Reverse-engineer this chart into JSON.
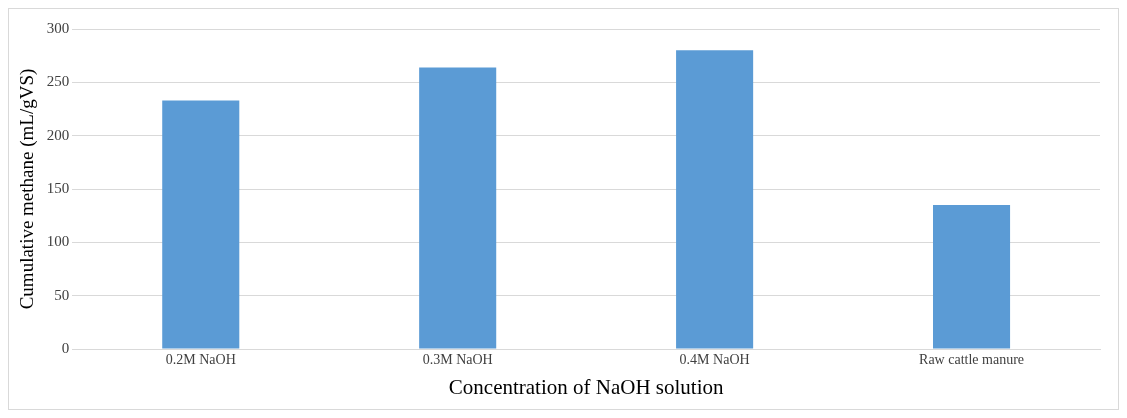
{
  "chart_data": {
    "type": "bar",
    "xlabel": "Concentration of NaOH solution",
    "ylabel": "Cumulative methane (mL/gVS)",
    "categories": [
      "0.2M NaOH",
      "0.3M NaOH",
      "0.4M NaOH",
      "Raw cattle manure"
    ],
    "values": [
      233,
      264,
      280,
      135
    ],
    "color": "#5b9bd5",
    "ylim": [
      0,
      300
    ],
    "yticks": [
      0,
      50,
      100,
      150,
      200,
      250,
      300
    ],
    "grid": "y",
    "legend": false
  }
}
